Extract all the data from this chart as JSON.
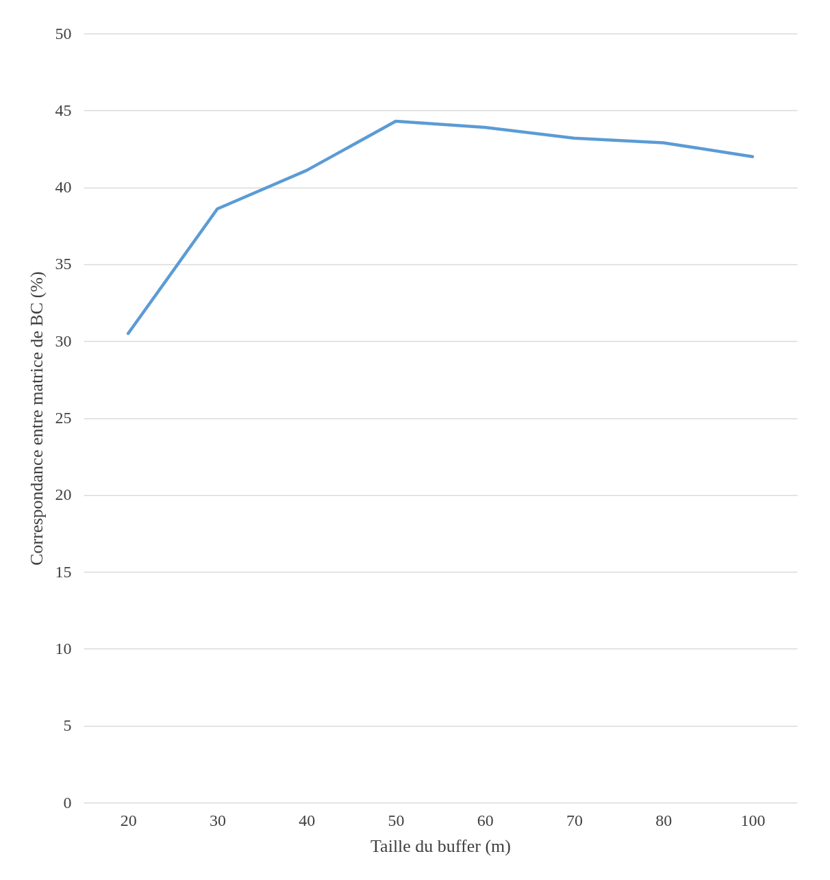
{
  "chart_data": {
    "type": "line",
    "xlabel": "Taille  du buffer (m)",
    "ylabel": "Correspondance entre matrice de BC (%)",
    "categories": [
      "20",
      "30",
      "40",
      "50",
      "60",
      "70",
      "80",
      "100"
    ],
    "series": [
      {
        "color": "#5b9bd5",
        "values": [
          30.5,
          38.6,
          41.1,
          44.3,
          43.9,
          43.2,
          42.9,
          42.0
        ]
      }
    ],
    "ylim": [
      0,
      50
    ],
    "yticks": [
      0,
      5,
      10,
      15,
      20,
      25,
      30,
      35,
      40,
      45,
      50
    ],
    "grid": "y",
    "marker": "none",
    "line_style": "solid"
  }
}
